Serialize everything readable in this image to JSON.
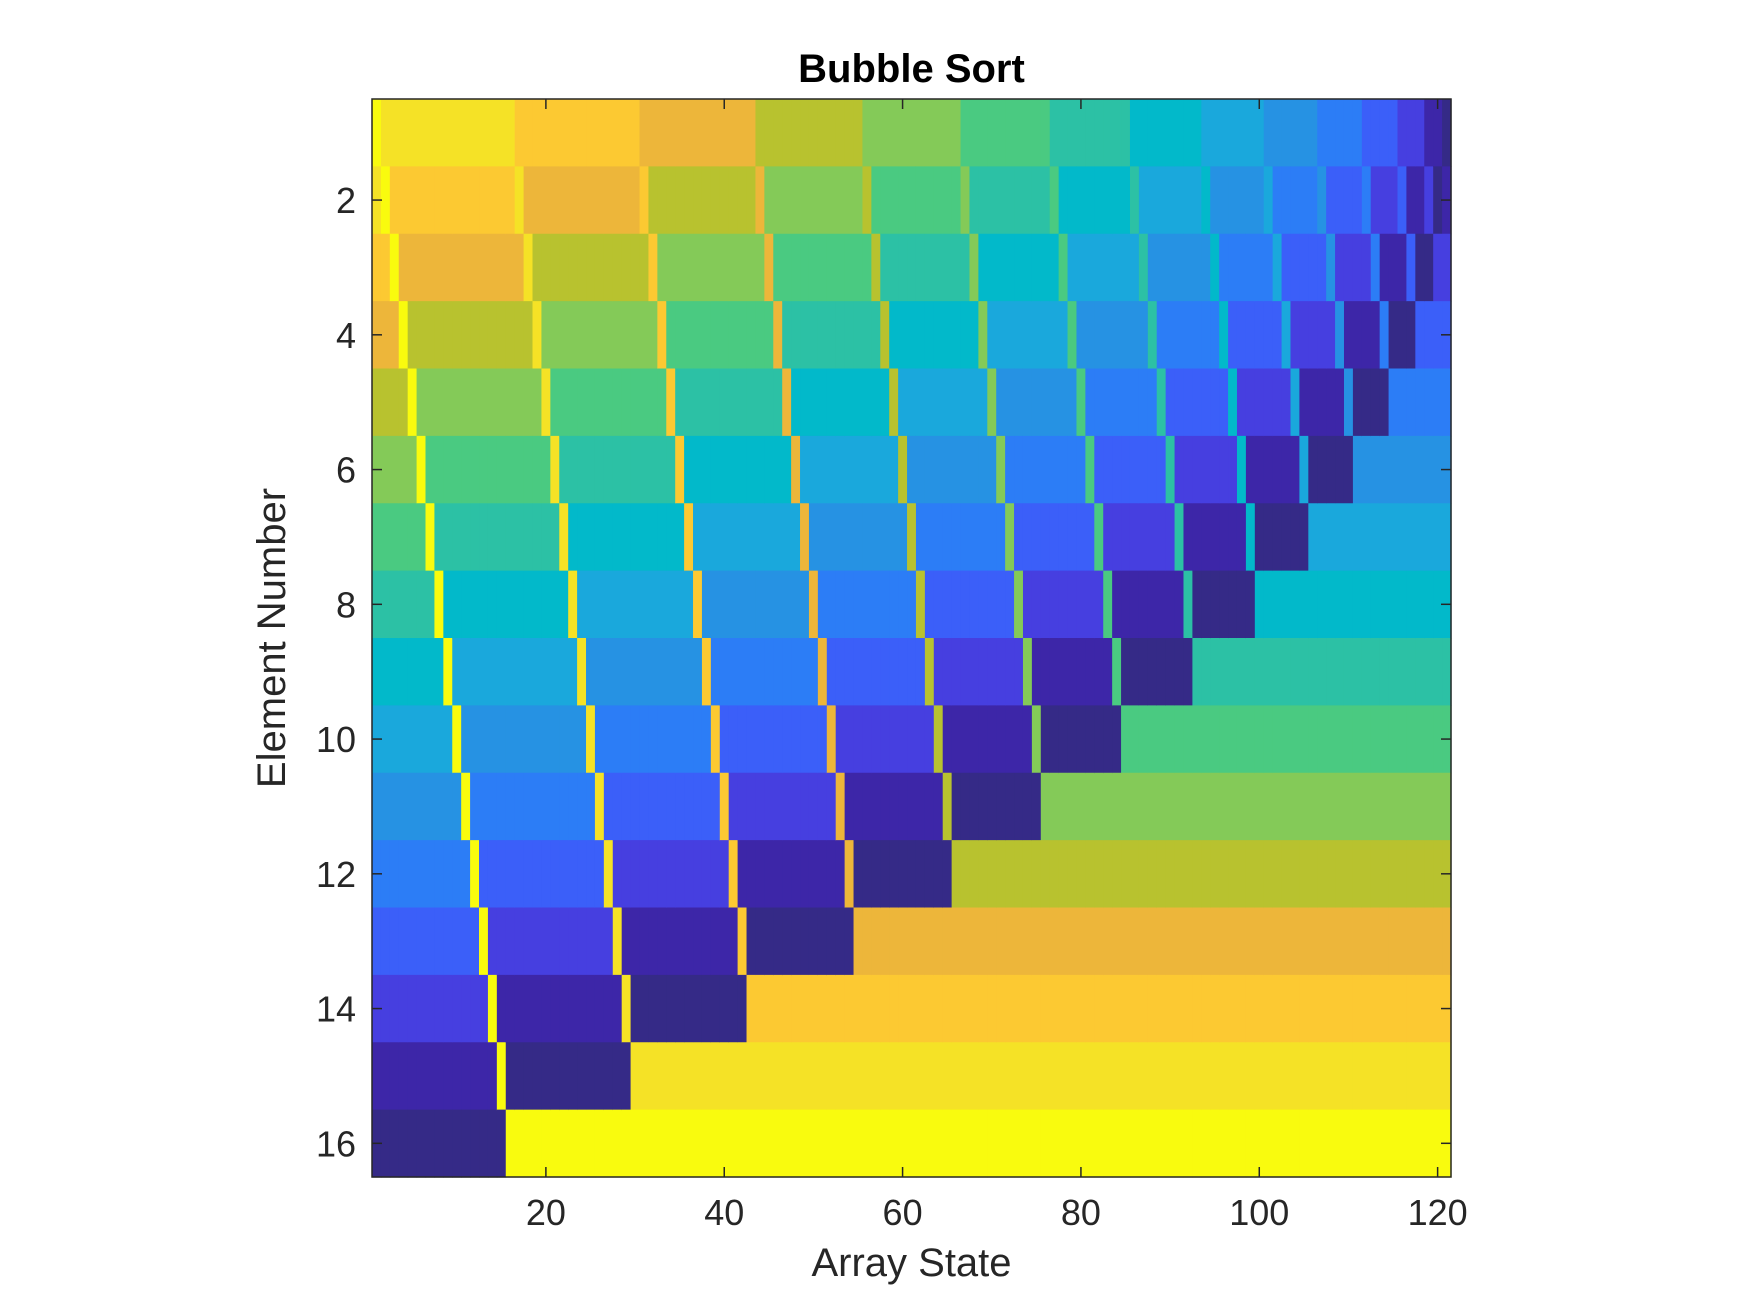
{
  "chart_data": {
    "type": "heatmap",
    "title": "Bubble Sort",
    "xlabel": "Array State",
    "ylabel": "Element Number",
    "xlim": [
      0.5,
      121.5
    ],
    "ylim": [
      0.5,
      16.5
    ],
    "y_direction": "reverse",
    "x_ticks": [
      20,
      40,
      60,
      80,
      100,
      120
    ],
    "x_tick_labels": [
      "20",
      "40",
      "60",
      "80",
      "100",
      "120"
    ],
    "y_ticks": [
      2,
      4,
      6,
      8,
      10,
      12,
      14,
      16
    ],
    "y_tick_labels": [
      "2",
      "4",
      "6",
      "8",
      "10",
      "12",
      "14",
      "16"
    ],
    "n_elements": 16,
    "n_states": 121,
    "algorithm": "bubble",
    "initial_array": [
      15,
      14,
      13,
      12,
      11,
      10,
      9,
      8,
      7,
      6,
      5,
      4,
      3,
      2,
      1,
      0
    ],
    "colormap": "parula",
    "color_limits": [
      0,
      15
    ],
    "grid": false,
    "legend": "none"
  },
  "colors": {
    "parula": [
      "#352A87",
      "#3D26A8",
      "#463FE0",
      "#3B5FF9",
      "#2C7DF6",
      "#2692E3",
      "#1AA8DC",
      "#02B9CA",
      "#2CC1A5",
      "#4ACA81",
      "#84CA58",
      "#B8C22F",
      "#EDB63A",
      "#FCC932",
      "#F5E226",
      "#F9FB0E"
    ],
    "axis": "#262626",
    "background": "#ffffff"
  }
}
